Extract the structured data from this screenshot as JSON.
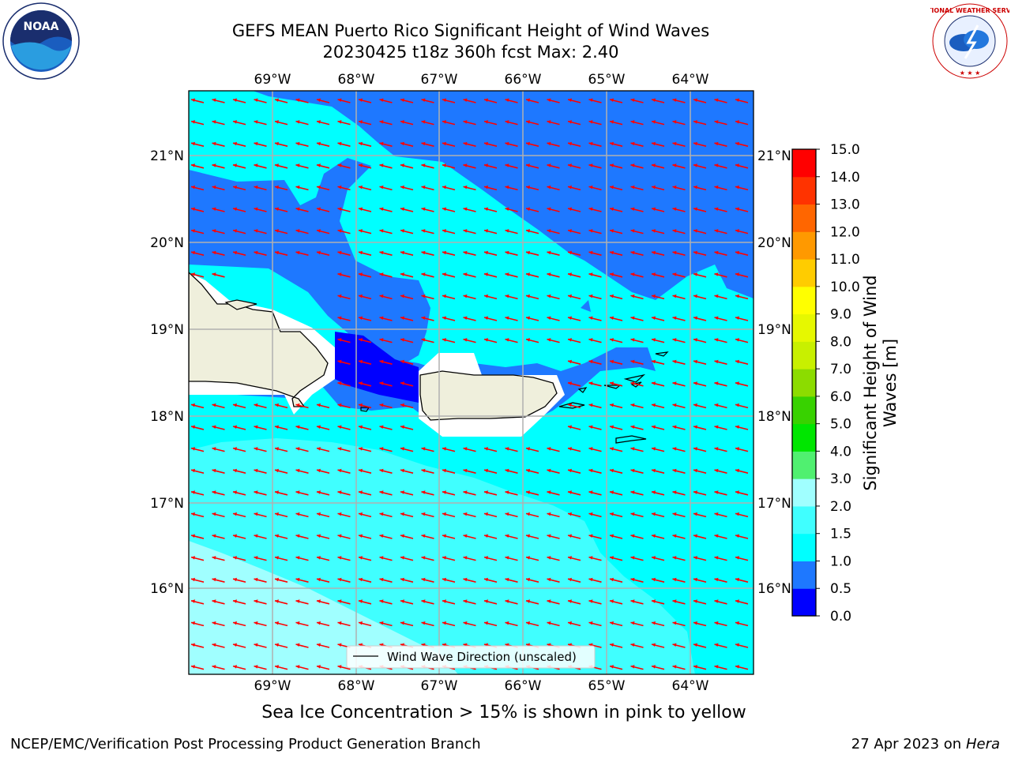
{
  "title": {
    "line1": "GEFS MEAN Puerto Rico Significant Height of Wind Waves",
    "line2": "20230425 t18z 360h fcst   Max: 2.40"
  },
  "lon_labels": [
    "69°W",
    "68°W",
    "67°W",
    "66°W",
    "65°W",
    "64°W"
  ],
  "lat_labels": [
    "21°N",
    "20°N",
    "19°N",
    "18°N",
    "17°N",
    "16°N"
  ],
  "legend_label": "Wind Wave Direction (unscaled)",
  "colorbar": {
    "title": "Significant Height of Wind Waves [m]",
    "ticks": [
      "0.0",
      "0.5",
      "1.0",
      "1.5",
      "2.0",
      "3.0",
      "4.0",
      "5.0",
      "6.0",
      "7.0",
      "8.0",
      "9.0",
      "10.0",
      "11.0",
      "12.0",
      "13.0",
      "14.0",
      "15.0"
    ],
    "colors": [
      "#0000ff",
      "#1e78ff",
      "#00ffff",
      "#40ffff",
      "#a0ffff",
      "#50f070",
      "#00e600",
      "#38d200",
      "#8cdc00",
      "#c8f000",
      "#e6f800",
      "#ffff00",
      "#ffcc00",
      "#ff9900",
      "#ff6600",
      "#ff3300",
      "#ff0000"
    ]
  },
  "map_colors": {
    "level_0_0_5": "#0000ff",
    "level_0_5_1_0": "#1e78ff",
    "level_1_0_1_5": "#00ffff",
    "level_1_5_2_0": "#40ffff",
    "level_2_0_3_0": "#a0ffff",
    "land": "#efefdc",
    "arrows": "#ff0000"
  },
  "bottom_note": "Sea Ice Concentration > 15% is shown in pink to yellow",
  "footer_left": "NCEP/EMC/Verification Post Processing Product Generation Branch",
  "footer_right_date": "27 Apr 2023 on ",
  "footer_right_host": "Hera",
  "logos": {
    "noaa": "NOAA",
    "nws": "NATIONAL WEATHER SERVICE"
  }
}
